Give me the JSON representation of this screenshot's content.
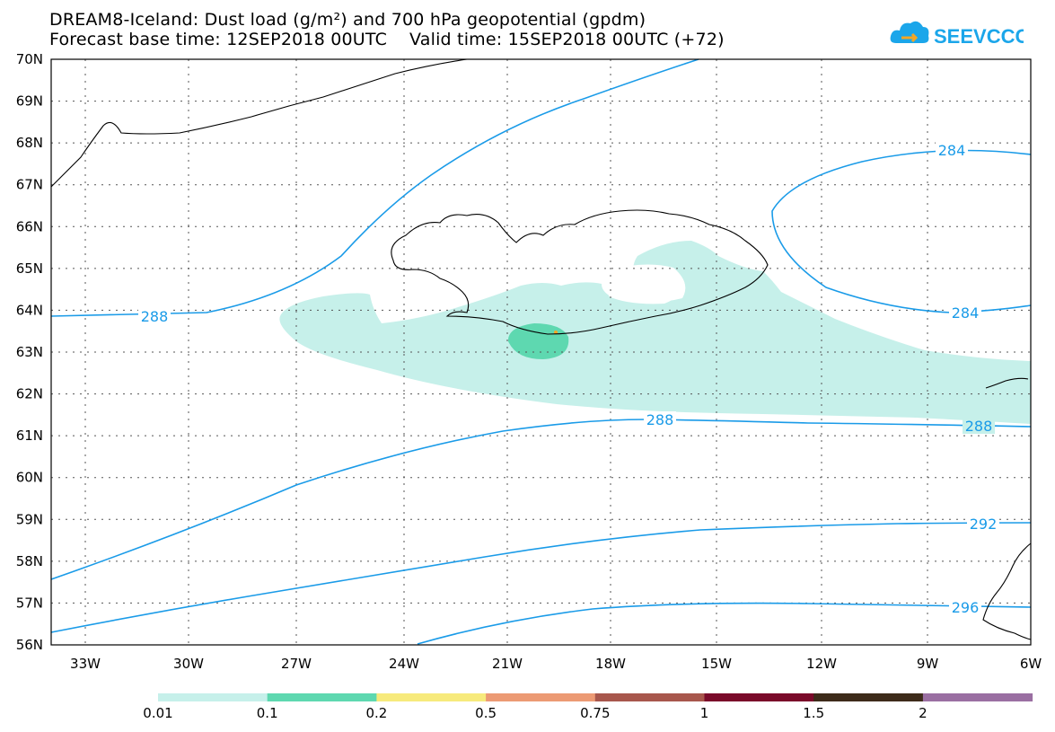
{
  "header": {
    "title_line1": "DREAM8-Iceland: Dust load (g/m²) and 700 hPa geopotential (gpdm)",
    "title_line2": "Forecast base time: 12SEP2018 00UTC    Valid time: 15SEP2018 00UTC (+72)",
    "logo_text": "SEEVCCC"
  },
  "axes": {
    "lat_labels": [
      "70N",
      "69N",
      "68N",
      "67N",
      "66N",
      "65N",
      "64N",
      "63N",
      "62N",
      "61N",
      "60N",
      "59N",
      "58N",
      "57N",
      "56N"
    ],
    "lon_labels": [
      "33W",
      "30W",
      "27W",
      "24W",
      "21W",
      "18W",
      "15W",
      "12W",
      "9W",
      "6W"
    ]
  },
  "contour_labels": [
    "288",
    "288",
    "288",
    "284",
    "284",
    "292",
    "296"
  ],
  "colorbar": {
    "labels": [
      "0.01",
      "0.1",
      "0.2",
      "0.5",
      "0.75",
      "1",
      "1.5",
      "2"
    ],
    "colors": [
      "#c6f0ea",
      "#5ed8b0",
      "#f7ea7c",
      "#ec9a74",
      "#a8574c",
      "#7a0a2a",
      "#3d2b1a",
      "#9a6fa2"
    ]
  },
  "colors": {
    "contour": "#1a9be8",
    "dust_low": "#c6f0ea",
    "dust_mid": "#5ed8b0"
  }
}
